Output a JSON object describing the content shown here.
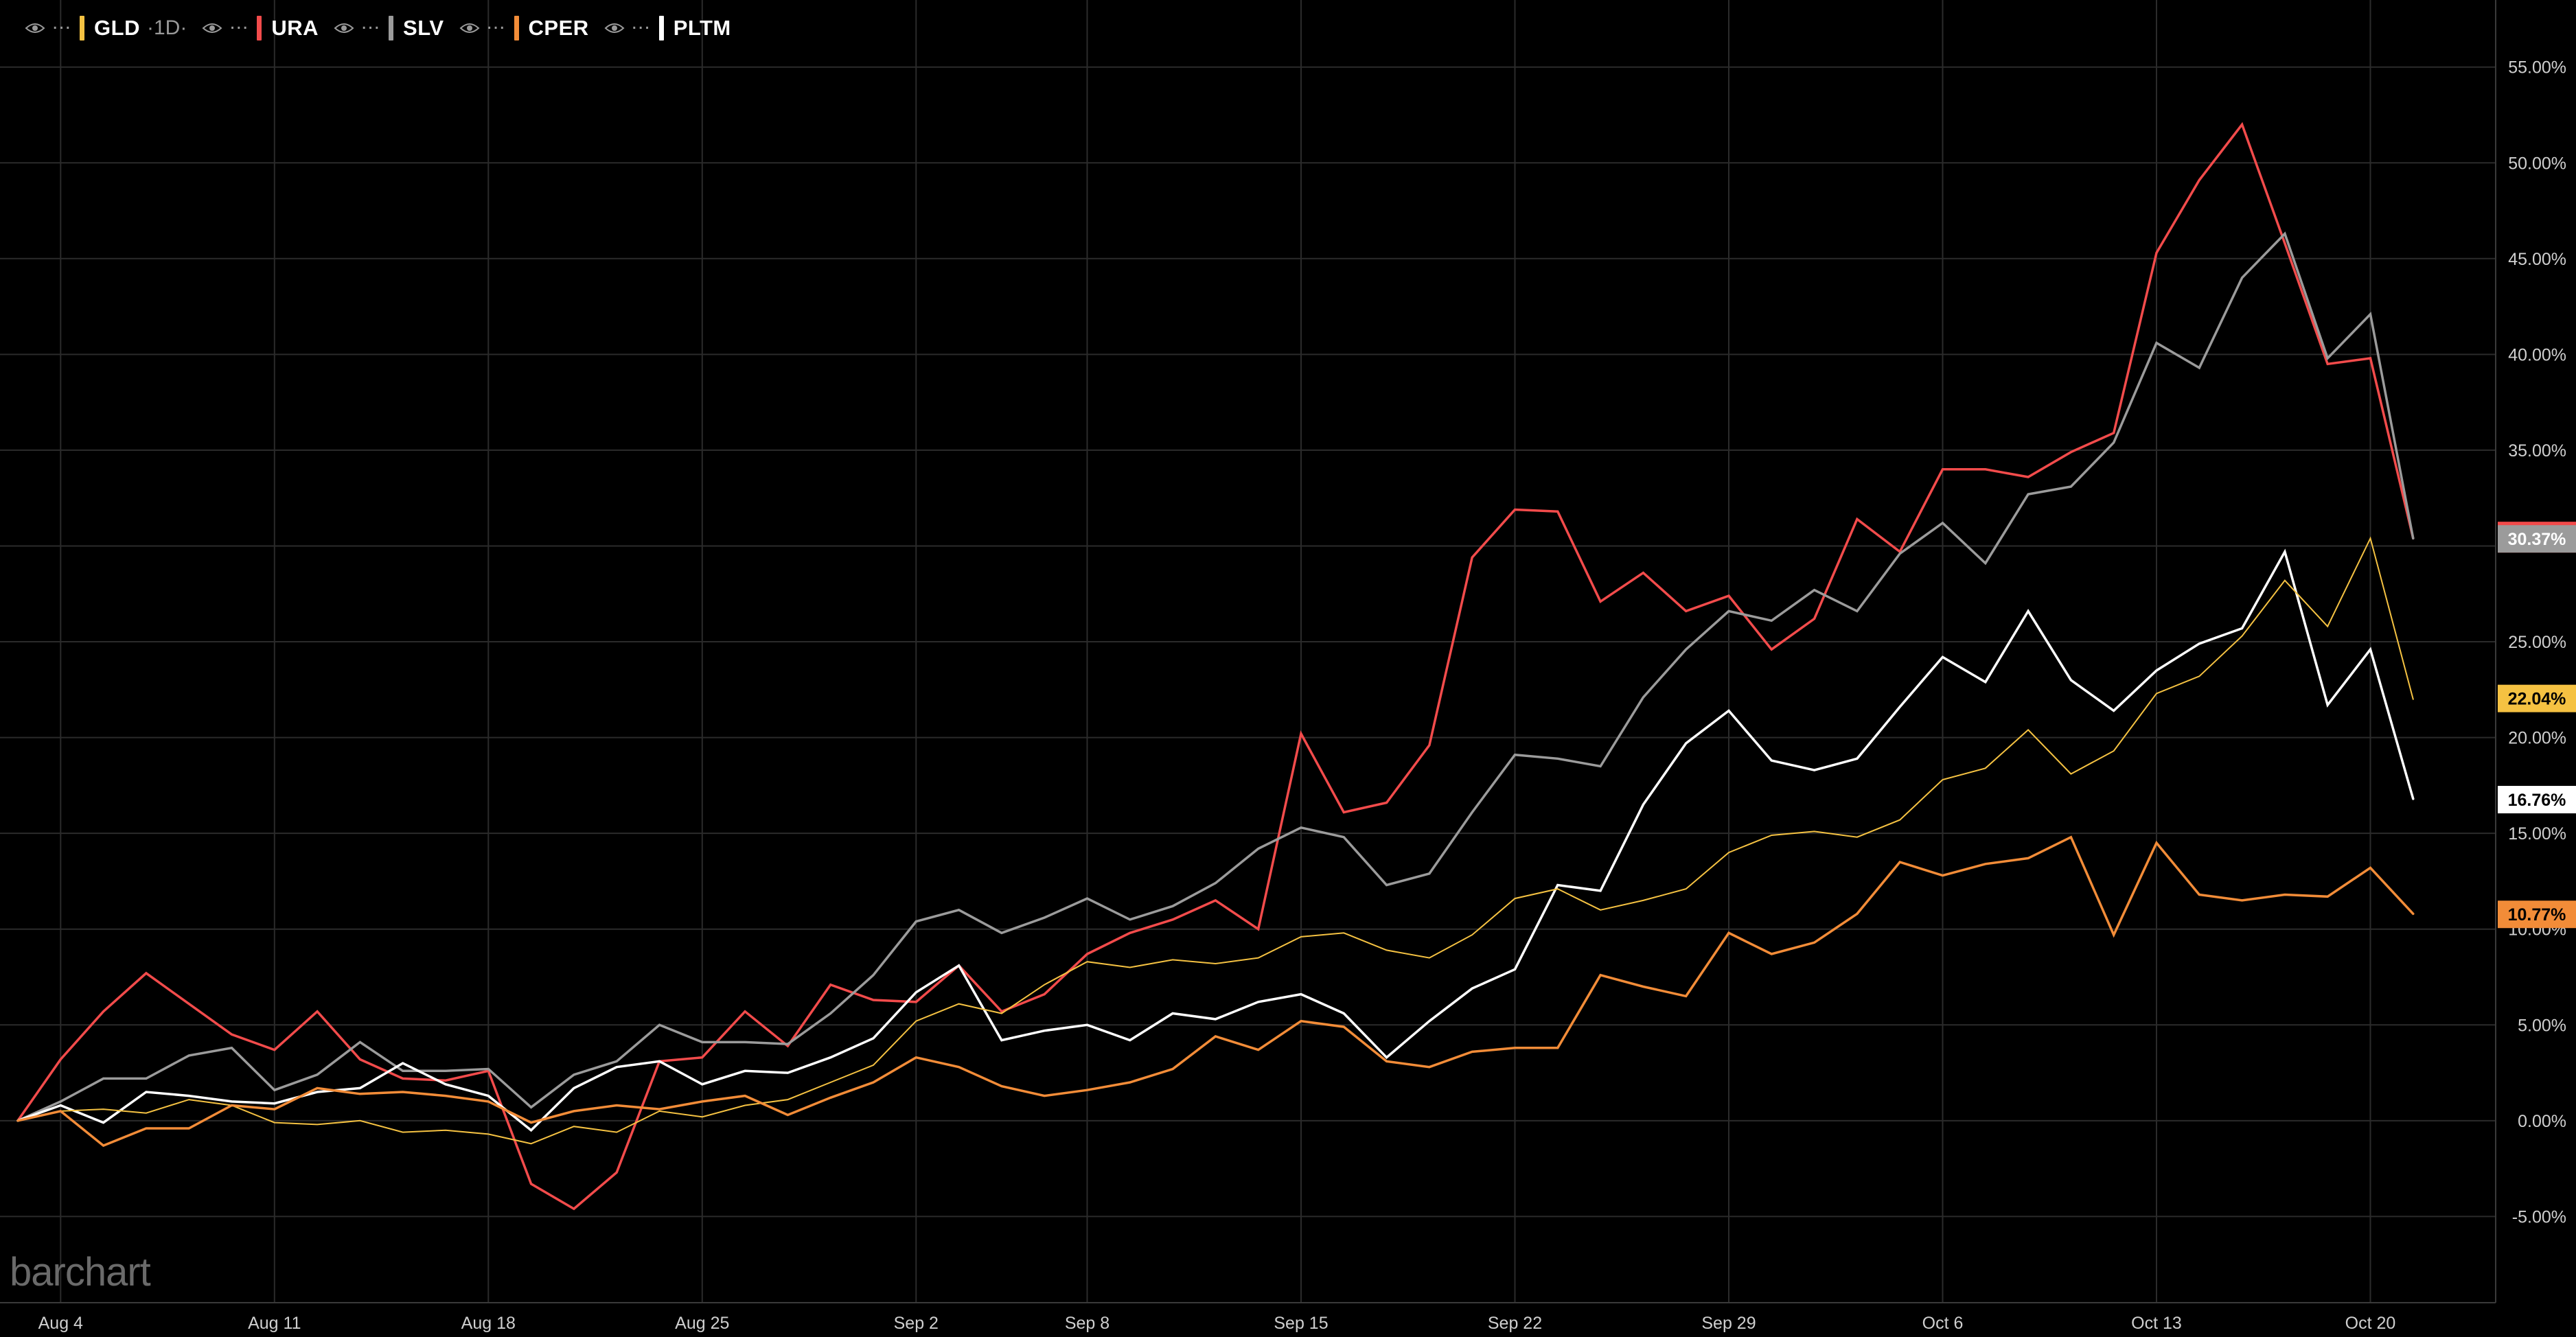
{
  "legend": [
    {
      "symbol": "GLD",
      "interval": "1D",
      "color": "#f5c242"
    },
    {
      "symbol": "URA",
      "interval": "",
      "color": "#f24b4b"
    },
    {
      "symbol": "SLV",
      "interval": "",
      "color": "#9b9b9b"
    },
    {
      "symbol": "CPER",
      "interval": "",
      "color": "#f28c38"
    },
    {
      "symbol": "PLTM",
      "interval": "",
      "color": "#ffffff"
    }
  ],
  "logo_text": "barchart",
  "chart_data": {
    "type": "line",
    "x_ticks": [
      "Aug 4",
      "Aug 11",
      "Aug 18",
      "Aug 25",
      "Sep 2",
      "Sep 8",
      "Sep 15",
      "Sep 22",
      "Sep 29",
      "Oct 6",
      "Oct 13",
      "Oct 20"
    ],
    "x_tick_index": [
      1,
      6,
      11,
      16,
      21,
      25,
      30,
      35,
      40,
      45,
      50,
      55
    ],
    "y_ticks": [
      "55.00%",
      "50.00%",
      "45.00%",
      "40.00%",
      "35.00%",
      "30.00%",
      "25.00%",
      "20.00%",
      "15.00%",
      "10.00%",
      "5.00%",
      "0.00%",
      "-5.00%"
    ],
    "y_unit": "%",
    "ylim": [
      -9.5,
      58.5
    ],
    "grid": true,
    "series": [
      {
        "name": "URA",
        "color": "#f24b4b",
        "width": 3.5,
        "values": [
          0,
          3.2,
          5.7,
          7.7,
          6.1,
          4.5,
          3.7,
          5.7,
          3.2,
          2.2,
          2.1,
          2.6,
          -3.3,
          -4.6,
          -2.7,
          3.1,
          3.3,
          5.7,
          3.9,
          7.1,
          6.3,
          6.2,
          8.1,
          5.7,
          6.6,
          8.7,
          9.8,
          10.5,
          11.5,
          10.0,
          20.2,
          16.1,
          16.6,
          19.6,
          29.4,
          31.9,
          31.8,
          27.1,
          28.6,
          26.6,
          27.4,
          24.6,
          26.2,
          31.4,
          29.7,
          34.0,
          34.0,
          33.6,
          34.9,
          35.9,
          45.3,
          49.1,
          52.0,
          45.8,
          39.5,
          39.8,
          30.4
        ]
      },
      {
        "name": "SLV",
        "color": "#9b9b9b",
        "width": 3.5,
        "values": [
          0,
          1.0,
          2.2,
          2.2,
          3.4,
          3.8,
          1.6,
          2.4,
          4.1,
          2.6,
          2.6,
          2.7,
          0.7,
          2.4,
          3.1,
          5.0,
          4.1,
          4.1,
          4.0,
          5.6,
          7.6,
          10.4,
          11.0,
          9.8,
          10.6,
          11.6,
          10.5,
          11.2,
          12.4,
          14.2,
          15.3,
          14.8,
          12.3,
          12.9,
          16.1,
          19.1,
          18.9,
          18.5,
          22.1,
          24.6,
          26.6,
          26.1,
          27.7,
          26.6,
          29.6,
          31.2,
          29.1,
          32.7,
          33.1,
          35.4,
          40.6,
          39.3,
          44.0,
          46.3,
          39.8,
          42.1,
          30.4
        ]
      },
      {
        "name": "PLTM",
        "color": "#ffffff",
        "width": 3.5,
        "values": [
          0,
          0.8,
          -0.1,
          1.5,
          1.3,
          1.0,
          0.9,
          1.5,
          1.7,
          3.0,
          1.9,
          1.3,
          -0.5,
          1.7,
          2.8,
          3.1,
          1.9,
          2.6,
          2.5,
          3.3,
          4.3,
          6.7,
          8.1,
          4.2,
          4.7,
          5.0,
          4.2,
          5.6,
          5.3,
          6.2,
          6.6,
          5.6,
          3.3,
          5.2,
          6.9,
          7.9,
          12.3,
          12.0,
          16.5,
          19.7,
          21.4,
          18.8,
          18.3,
          18.9,
          21.6,
          24.2,
          22.9,
          26.6,
          23.0,
          21.4,
          23.5,
          24.9,
          25.7,
          29.7,
          21.7,
          24.6,
          16.8
        ]
      },
      {
        "name": "GLD",
        "color": "#f5c242",
        "width": 2,
        "values": [
          0,
          0.5,
          0.6,
          0.4,
          1.1,
          0.8,
          -0.1,
          -0.2,
          0.0,
          -0.6,
          -0.5,
          -0.7,
          -1.2,
          -0.3,
          -0.6,
          0.5,
          0.2,
          0.8,
          1.1,
          2.0,
          2.9,
          5.2,
          6.1,
          5.6,
          7.1,
          8.3,
          8.0,
          8.4,
          8.2,
          8.5,
          9.6,
          9.8,
          8.9,
          8.5,
          9.7,
          11.6,
          12.1,
          11.0,
          11.5,
          12.1,
          14.0,
          14.9,
          15.1,
          14.8,
          15.7,
          17.8,
          18.4,
          20.4,
          18.1,
          19.3,
          22.3,
          23.2,
          25.3,
          28.2,
          25.8,
          30.4,
          22.0
        ]
      },
      {
        "name": "CPER",
        "color": "#f28c38",
        "width": 3.5,
        "values": [
          0,
          0.5,
          -1.3,
          -0.4,
          -0.4,
          0.8,
          0.6,
          1.7,
          1.4,
          1.5,
          1.3,
          1.0,
          -0.1,
          0.5,
          0.8,
          0.6,
          1.0,
          1.3,
          0.3,
          1.2,
          2.0,
          3.3,
          2.8,
          1.8,
          1.3,
          1.6,
          2.0,
          2.7,
          4.4,
          3.7,
          5.2,
          4.9,
          3.1,
          2.8,
          3.6,
          3.8,
          3.8,
          7.6,
          7.0,
          6.5,
          9.8,
          8.7,
          9.3,
          10.8,
          13.5,
          12.8,
          13.4,
          13.7,
          14.8,
          9.7,
          14.5,
          11.8,
          11.5,
          11.8,
          11.7,
          13.2,
          10.8
        ]
      }
    ],
    "last_value_labels": [
      {
        "text": "30.37%",
        "series": "SLV",
        "value": 30.37,
        "bg": "#9b9b9b",
        "fg": "#ffffff",
        "edge": "#f24b4b"
      },
      {
        "text": "22.04%",
        "series": "GLD",
        "value": 22.04,
        "bg": "#f5c242",
        "fg": "#000000"
      },
      {
        "text": "16.76%",
        "series": "PLTM",
        "value": 16.76,
        "bg": "#ffffff",
        "fg": "#000000"
      },
      {
        "text": "10.77%",
        "series": "CPER",
        "value": 10.77,
        "bg": "#f28c38",
        "fg": "#000000"
      }
    ]
  }
}
